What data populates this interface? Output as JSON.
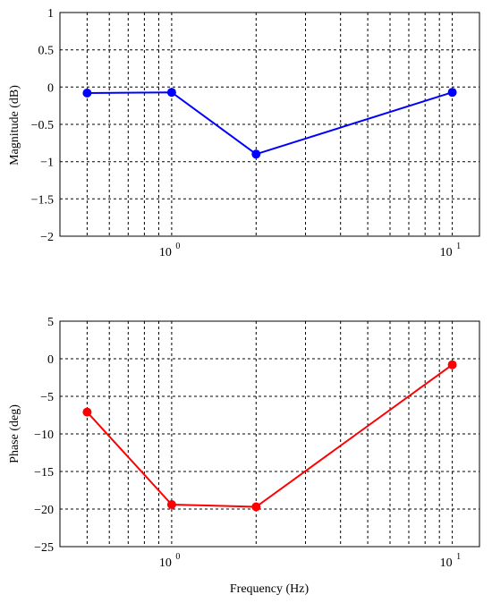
{
  "chart_data": [
    {
      "type": "line",
      "xscale": "log",
      "xlim": [
        0.4,
        12.5
      ],
      "ylim": [
        -2,
        1
      ],
      "grid": true,
      "xlabel": "",
      "ylabel": "Magnitude (dB)",
      "x_tick_labels": [
        {
          "value": 1,
          "base": "10",
          "exp": "0"
        },
        {
          "value": 10,
          "base": "10",
          "exp": "1"
        }
      ],
      "y_ticks": [
        1,
        0.5,
        0,
        -0.5,
        -1,
        -1.5,
        -2
      ],
      "y_tick_labels": [
        "1",
        "0.5",
        "0",
        "−0.5",
        "−1",
        "−1.5",
        "−2"
      ],
      "series": [
        {
          "color": "#0000ff",
          "x": [
            0.5,
            1,
            2,
            10
          ],
          "y": [
            -0.08,
            -0.07,
            -0.9,
            -0.07
          ]
        }
      ]
    },
    {
      "type": "line",
      "xscale": "log",
      "xlim": [
        0.4,
        12.5
      ],
      "ylim": [
        -25,
        5
      ],
      "grid": true,
      "xlabel": "Frequency (Hz)",
      "ylabel": "Phase (deg)",
      "x_tick_labels": [
        {
          "value": 1,
          "base": "10",
          "exp": "0"
        },
        {
          "value": 10,
          "base": "10",
          "exp": "1"
        }
      ],
      "y_ticks": [
        5,
        0,
        -5,
        -10,
        -15,
        -20,
        -25
      ],
      "y_tick_labels": [
        "5",
        "0",
        "−5",
        "−10",
        "−15",
        "−20",
        "−25"
      ],
      "series": [
        {
          "color": "#ff0000",
          "x": [
            0.5,
            1,
            2,
            10
          ],
          "y": [
            -7.1,
            -19.4,
            -19.7,
            -0.8
          ]
        }
      ]
    }
  ]
}
